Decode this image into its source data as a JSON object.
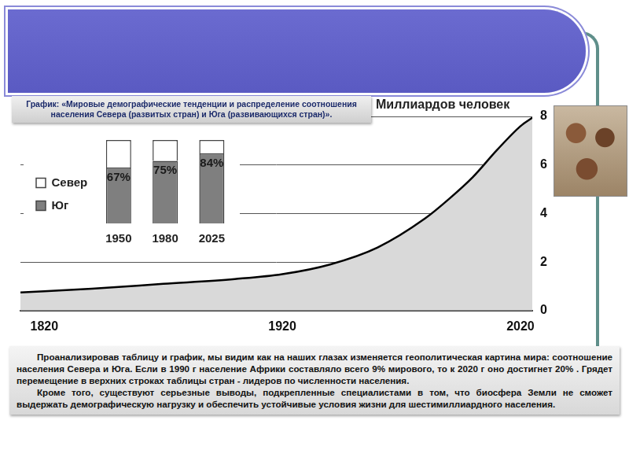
{
  "chart_data": [
    {
      "type": "area",
      "title": "График: «Мировые демографические тенденции и распределение соотношения населения Севера (развитых стран) и Юга (развивающихся стран)».",
      "ylabel": "Миллиардов человек",
      "x": [
        1810,
        1840,
        1870,
        1900,
        1920,
        1940,
        1960,
        1980,
        1990,
        2000,
        2010,
        2020,
        2025
      ],
      "values": [
        0.75,
        0.9,
        1.1,
        1.3,
        1.5,
        1.9,
        2.6,
        3.8,
        4.6,
        5.5,
        6.6,
        7.6,
        7.95
      ],
      "color": "#d9d9d9",
      "xlim": [
        1810,
        2025
      ],
      "xticks": [
        1820,
        1920,
        2020
      ],
      "ylim": [
        0,
        8
      ],
      "yticks": [
        0,
        2,
        4,
        6,
        8
      ],
      "grid": true
    },
    {
      "type": "bar",
      "stacked": true,
      "categories": [
        "1950",
        "1980",
        "2025"
      ],
      "series": [
        {
          "name": "Юг",
          "color": "#7f7f7f",
          "values": [
            67,
            75,
            84
          ],
          "value_labels": [
            "67%",
            "75%",
            "84%"
          ],
          "data_labels": true
        },
        {
          "name": "Север",
          "color": "#ffffff",
          "values": [
            33,
            25,
            16
          ]
        }
      ],
      "ylim": [
        0,
        100
      ],
      "legend": "left",
      "tick_labels": "x"
    }
  ],
  "text": {
    "paragraphs": [
      "Проанализировав таблицу и график, мы видим как на наших глазах изменяется геополитическая картина мира: соотношение населения Севера и Юга. Если в 1990 г население Африки составляло всего 9% мирового, то к 2020 г оно достигнет 20% . Грядет перемещение в верхних строках таблицы стран - лидеров по численности населения.",
      "Кроме того, существуют серьезные выводы, подкрепленные специалистами в том, что биосфера Земли не сможет выдержать демографическую нагрузку и обеспечить устойчивые условия жизни для шестимиллиардного населения."
    ]
  }
}
